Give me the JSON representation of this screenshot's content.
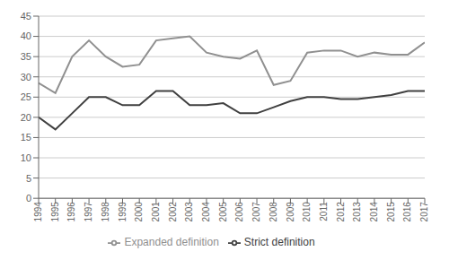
{
  "chart_data": {
    "type": "line",
    "x": [
      1994,
      1995,
      1996,
      1997,
      1998,
      1999,
      2000,
      2001,
      2002,
      2003,
      2004,
      2005,
      2006,
      2007,
      2008,
      2009,
      2010,
      2011,
      2012,
      2013,
      2014,
      2015,
      2016,
      2017
    ],
    "series": [
      {
        "name": "Strict definition",
        "color": "#404040",
        "values": [
          20,
          17,
          21,
          25,
          25,
          23,
          23,
          26.5,
          26.5,
          23,
          23,
          23.5,
          21,
          21,
          22.5,
          24,
          25,
          25,
          24.5,
          24.5,
          25,
          25.5,
          26.5,
          26.5
        ]
      },
      {
        "name": "Expanded definition",
        "color": "#909090",
        "values": [
          28.5,
          26,
          35,
          39,
          35,
          32.5,
          33,
          39,
          39.5,
          40,
          36,
          35,
          34.5,
          36.5,
          28,
          29,
          36,
          36.5,
          36.5,
          35,
          36,
          35.5,
          35.5,
          38.5
        ]
      }
    ],
    "xlim": [
      1994,
      2017
    ],
    "xticks": [
      1994,
      1995,
      1996,
      1997,
      1998,
      1999,
      2000,
      2001,
      2002,
      2003,
      2004,
      2005,
      2006,
      2007,
      2008,
      2009,
      2010,
      2011,
      2012,
      2013,
      2014,
      2015,
      2016,
      2017
    ],
    "ylim": [
      0,
      45
    ],
    "yticks": [
      0,
      5,
      10,
      15,
      20,
      25,
      30,
      35,
      40,
      45
    ],
    "grid": true,
    "legend": "bottom"
  }
}
